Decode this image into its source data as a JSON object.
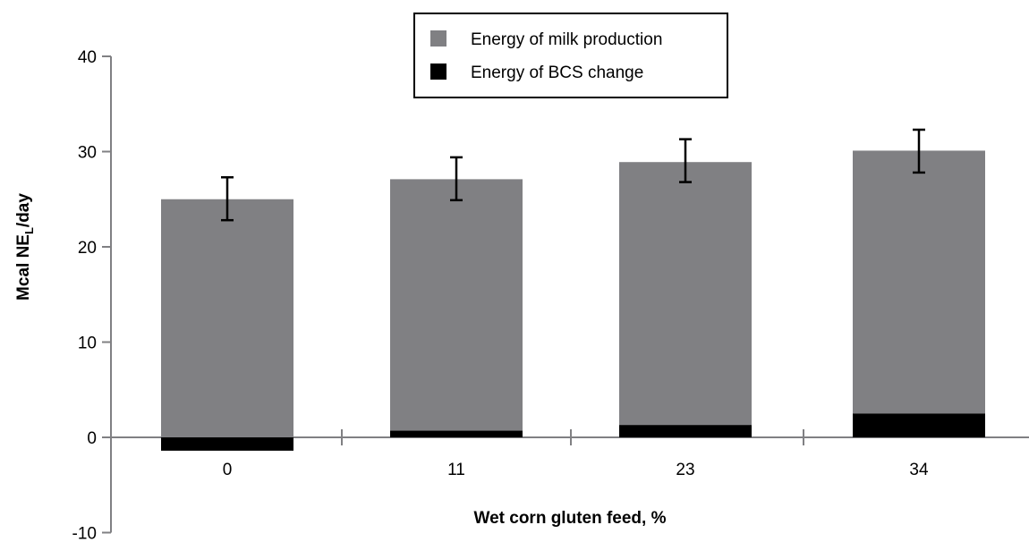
{
  "chart_data": {
    "type": "bar",
    "stacked": true,
    "categories": [
      "0",
      "11",
      "23",
      "34"
    ],
    "series": [
      {
        "name": "Energy of milk production",
        "color": "#808083",
        "values": [
          25.0,
          26.4,
          27.6,
          27.6
        ]
      },
      {
        "name": "Energy of BCS change",
        "color": "#000000",
        "values": [
          -1.4,
          0.7,
          1.3,
          2.5
        ]
      }
    ],
    "error_bars": {
      "applies_to": "total milk production bar",
      "upper": [
        27.3,
        29.4,
        31.3,
        32.3
      ],
      "lower": [
        22.8,
        24.9,
        26.8,
        27.8
      ]
    },
    "xlabel": "Wet corn gluten feed, %",
    "ylabel_main": "Mcal NE",
    "ylabel_sub": "L",
    "ylabel_tail": "/day",
    "ylim": [
      -10,
      40
    ],
    "yticks": [
      "-10",
      "0",
      "10",
      "20",
      "30",
      "40"
    ],
    "legend_placement": "top-center",
    "grid": false
  }
}
